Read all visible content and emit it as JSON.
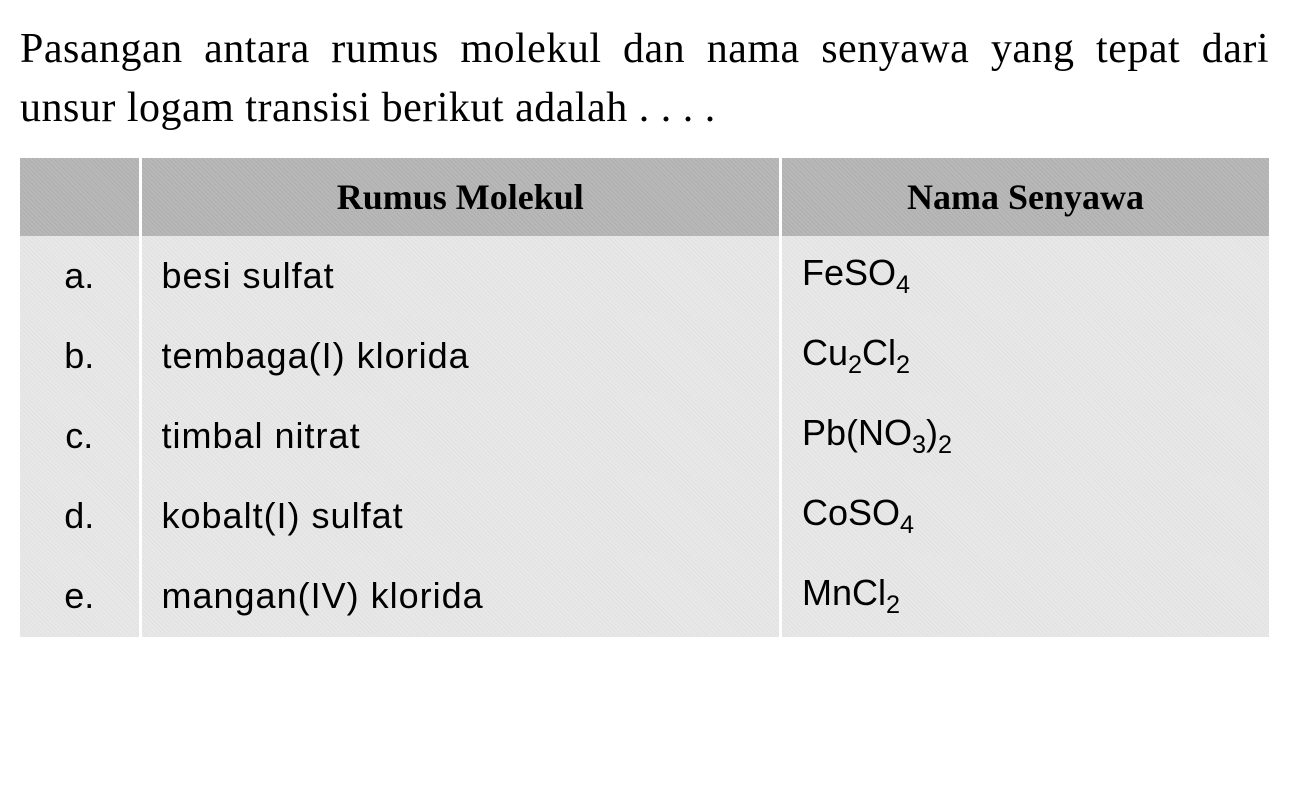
{
  "question": {
    "text": "Pasangan antara rumus molekul dan nama senyawa yang tepat dari unsur logam transisi berikut adalah . . . ."
  },
  "table": {
    "headers": {
      "col1": "",
      "col2": "Rumus Molekul",
      "col3": "Nama Senyawa"
    },
    "rows": [
      {
        "label": "a.",
        "name": "besi sulfat",
        "formula_html": "FeSO<sub>4</sub>"
      },
      {
        "label": "b.",
        "name": "tembaga(I) klorida",
        "formula_html": "Cu<sub>2</sub>Cl<sub>2</sub>"
      },
      {
        "label": "c.",
        "name": "timbal nitrat",
        "formula_html": "Pb(NO<sub>3</sub>)<sub>2</sub>"
      },
      {
        "label": "d.",
        "name": "kobalt(I) sulfat",
        "formula_html": "CoSO<sub>4</sub>"
      },
      {
        "label": "e.",
        "name": "mangan(IV) klorida",
        "formula_html": "MnCl<sub>2</sub>"
      }
    ]
  },
  "styling": {
    "background_color": "#ffffff",
    "header_bg": "#b8b8b8",
    "row_bg": "#e8e8e8",
    "text_color": "#000000",
    "question_fontsize": 42,
    "table_fontsize": 36,
    "separator_color": "#ffffff"
  }
}
